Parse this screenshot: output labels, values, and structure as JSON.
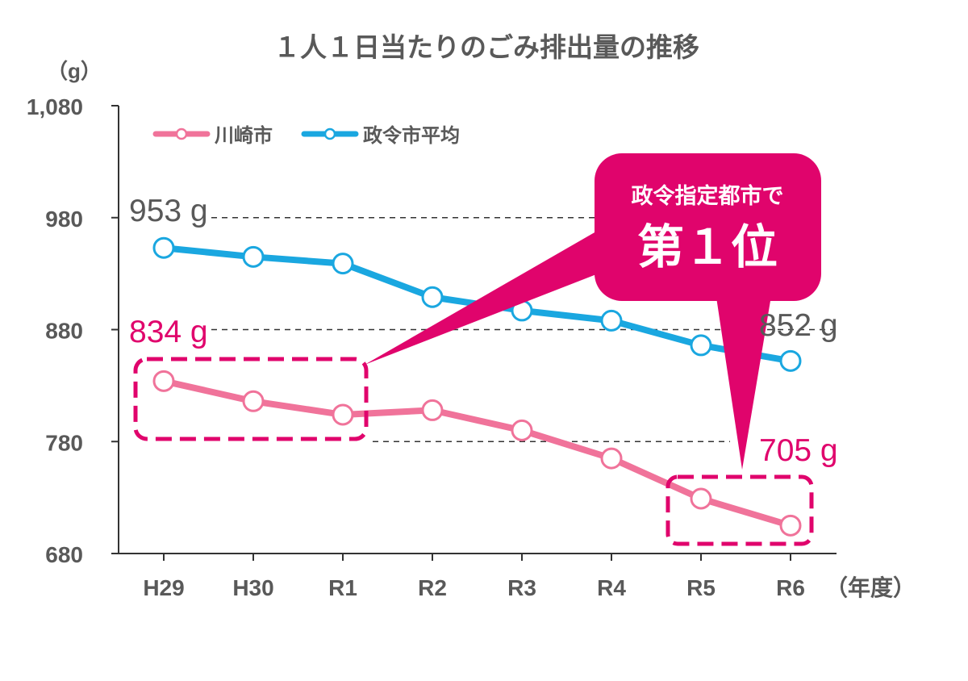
{
  "chart_data": {
    "type": "line",
    "title": "１人１日当たりのごみ排出量の推移",
    "y_unit": "（g）",
    "x_unit": "（年度）",
    "categories": [
      "H29",
      "H30",
      "R1",
      "R2",
      "R3",
      "R4",
      "R5",
      "R6"
    ],
    "ylim": [
      680,
      1080
    ],
    "yticks": [
      "680",
      "780",
      "880",
      "980",
      "1,080"
    ],
    "series": [
      {
        "name": "川崎市",
        "color": "#f0739a",
        "values": [
          834,
          816,
          804,
          808,
          790,
          765,
          729,
          705
        ]
      },
      {
        "name": "政令市平均",
        "color": "#1aa7e0",
        "values": [
          953,
          945,
          939,
          909,
          897,
          888,
          866,
          852
        ]
      }
    ],
    "legend_position": "top-left",
    "annotations": {
      "kawasaki_start": "834 g",
      "kawasaki_end": "705 g",
      "average_start": "953 g",
      "average_end": "852 g",
      "callout_line1": "政令指定都市で",
      "callout_line2": "第１位"
    },
    "colors": {
      "accent": "#e0046c",
      "text": "#595959",
      "grid": "#333333"
    }
  }
}
